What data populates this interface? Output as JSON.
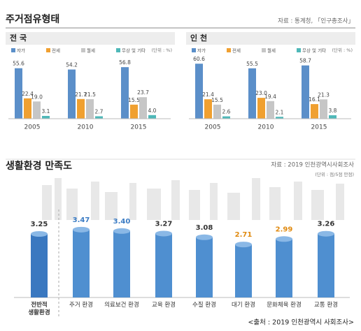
{
  "header": {
    "title": "주거점유형태",
    "source": "자료 : 통계청, 「인구총조사」"
  },
  "chart_data": [
    {
      "type": "bar",
      "title": "전 국",
      "unit": "(단위 : %)",
      "categories": [
        "2005",
        "2010",
        "2015"
      ],
      "series": [
        {
          "name": "자가",
          "color": "#5b8fc9",
          "values": [
            55.6,
            54.2,
            56.8
          ],
          "value_labels": [
            "55.6",
            "54.2",
            "56.8"
          ]
        },
        {
          "name": "전세",
          "color": "#f0a030",
          "values": [
            22.4,
            21.7,
            15.5
          ],
          "value_labels": [
            "22.4",
            "21.7",
            "15.5"
          ]
        },
        {
          "name": "월세",
          "color": "#c6c6c6",
          "values": [
            19.0,
            21.5,
            23.7
          ],
          "value_labels": [
            "19.0",
            "21.5",
            "23.7"
          ]
        },
        {
          "name": "무상 및 기타",
          "color": "#4fb8b8",
          "values": [
            3.1,
            2.7,
            4.0
          ],
          "value_labels": [
            "3.1",
            "2.7",
            "4.0"
          ]
        }
      ]
    },
    {
      "type": "bar",
      "title": "인 천",
      "unit": "(단위 : %)",
      "categories": [
        "2005",
        "2010",
        "2015"
      ],
      "series": [
        {
          "name": "자가",
          "color": "#5b8fc9",
          "values": [
            60.6,
            55.5,
            58.7
          ],
          "value_labels": [
            "60.6",
            "55.5",
            "58.7"
          ]
        },
        {
          "name": "전세",
          "color": "#f0a030",
          "values": [
            21.4,
            23.0,
            16.1
          ],
          "value_labels": [
            "21.4",
            "23.0",
            "16.1"
          ]
        },
        {
          "name": "월세",
          "color": "#c6c6c6",
          "values": [
            15.5,
            19.4,
            21.3
          ],
          "value_labels": [
            "15.5",
            "19.4",
            "21.3"
          ]
        },
        {
          "name": "무상 및 기타",
          "color": "#4fb8b8",
          "values": [
            2.6,
            2.1,
            3.8
          ],
          "value_labels": [
            "2.6",
            "2.1",
            "3.8"
          ]
        }
      ]
    },
    {
      "type": "cylinder",
      "title": "생활환경 만족도",
      "source": "자료 : 2019 인천광역시사회조사",
      "unit": "(단위 : 점/5점 만점)",
      "categories": [
        "전반적 생활환경",
        "주거 환경",
        "의료보건 환경",
        "교육 환경",
        "수질 환경",
        "대기 환경",
        "문화체육 환경",
        "교통 환경"
      ],
      "values": [
        3.25,
        3.47,
        3.4,
        3.27,
        3.08,
        2.71,
        2.99,
        3.26
      ],
      "value_labels": [
        "3.25",
        "3.47",
        "3.40",
        "3.27",
        "3.08",
        "2.71",
        "2.99",
        "3.26"
      ],
      "value_label_colors": [
        "#333333",
        "#3b7cc4",
        "#3b7cc4",
        "#333333",
        "#333333",
        "#e08a10",
        "#e08a10",
        "#333333"
      ],
      "color": "#4f8fd0"
    }
  ],
  "footer": "<출처 : 2019 인천광역시 사회조사>"
}
